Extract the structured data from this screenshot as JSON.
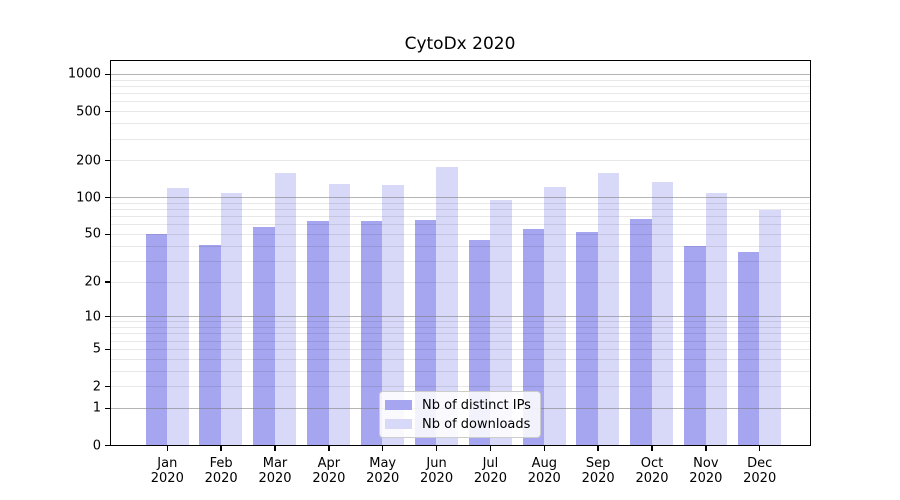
{
  "chart": {
    "title": "CytoDx 2020"
  },
  "chart_data": {
    "type": "bar",
    "title": "CytoDx 2020",
    "xlabel": "",
    "ylabel": "",
    "scale": "log1p",
    "grid": true,
    "legend_position": "lower center",
    "categories": [
      "Jan 2020",
      "Feb 2020",
      "Mar 2020",
      "Apr 2020",
      "May 2020",
      "Jun 2020",
      "Jul 2020",
      "Aug 2020",
      "Sep 2020",
      "Oct 2020",
      "Nov 2020",
      "Dec 2020"
    ],
    "y_tick_labels": [
      "0",
      "1",
      "2",
      "5",
      "10",
      "20",
      "50",
      "100",
      "200",
      "500",
      "1000"
    ],
    "y_tick_values": [
      0,
      1,
      2,
      5,
      10,
      20,
      50,
      100,
      200,
      500,
      1000
    ],
    "ylim": [
      0,
      1320
    ],
    "series": [
      {
        "name": "Nb of distinct IPs",
        "color": "#a5a5f0",
        "values": [
          50,
          41,
          58,
          64,
          65,
          66,
          45,
          55,
          52,
          67,
          40,
          36
        ]
      },
      {
        "name": "Nb of downloads",
        "color": "#d8d8f8",
        "values": [
          120,
          110,
          160,
          130,
          127,
          177,
          96,
          123,
          160,
          135,
          110,
          80
        ]
      }
    ],
    "colors": {
      "major_grid": "#b0b0b0",
      "minor_grid": "#e9e9e9",
      "axis": "#000000",
      "background": "#ffffff"
    }
  }
}
